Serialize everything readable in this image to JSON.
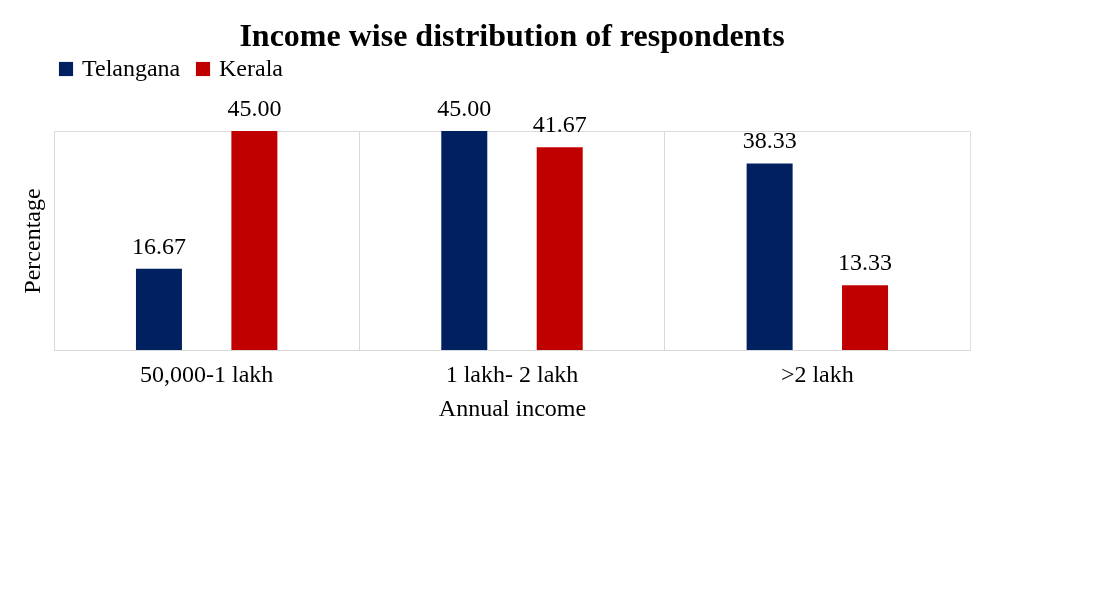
{
  "chart_data": {
    "type": "bar",
    "title": "Income wise distribution of respondents",
    "xlabel": "Annual income",
    "ylabel": "Percentage",
    "categories": [
      "50,000-1 lakh",
      "1 lakh- 2 lakh",
      ">2 lakh"
    ],
    "series": [
      {
        "name": "Telangana",
        "color": "#002060",
        "values": [
          16.67,
          45.0,
          38.33
        ],
        "value_labels": [
          "16.67",
          "45.00",
          "38.33"
        ]
      },
      {
        "name": "Kerala",
        "color": "#c00000",
        "values": [
          45.0,
          41.67,
          13.33
        ],
        "value_labels": [
          "45.00",
          "41.67",
          "13.33"
        ]
      }
    ],
    "legend": "top",
    "grid": "x",
    "tick_labels": "x"
  }
}
